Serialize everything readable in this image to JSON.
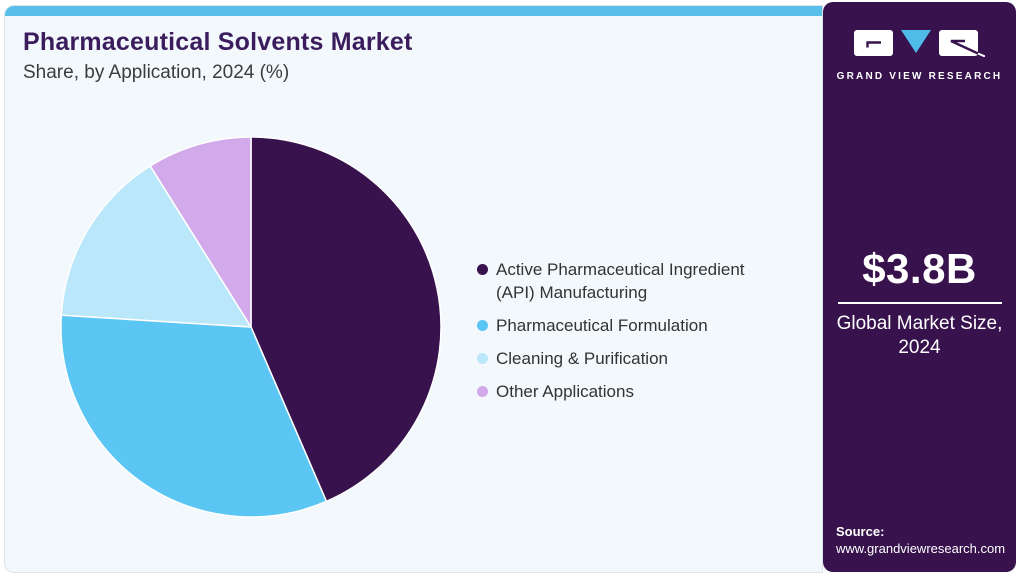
{
  "header": {
    "title": "Pharmaceutical Solvents Market",
    "subtitle": "Share, by Application, 2024 (%)"
  },
  "chart_data": {
    "type": "pie",
    "title": "Pharmaceutical Solvents Market Share, by Application, 2024 (%)",
    "unit": "%",
    "start_angle_deg": 0,
    "direction": "clockwise",
    "legend_position": "right",
    "slices": [
      {
        "label": "Active Pharmaceutical Ingredient (API) Manufacturing",
        "value": 43.5,
        "color": "#37124D"
      },
      {
        "label": "Pharmaceutical Formulation",
        "value": 32.5,
        "color": "#5BC6F3"
      },
      {
        "label": "Cleaning & Purification",
        "value": 15.1,
        "color": "#BBE7FA"
      },
      {
        "label": "Other Applications",
        "value": 8.9,
        "color": "#D2A9EA"
      }
    ]
  },
  "sidebar": {
    "logo_text": "GRAND VIEW RESEARCH",
    "market_size_value": "$3.8B",
    "market_size_label": "Global Market Size,\n2024",
    "source_label": "Source:",
    "source_url": "www.grandviewresearch.com"
  },
  "colors": {
    "accent_bar": "#5BC0E9",
    "card_bg": "#F2F8FC",
    "sidebar_bg": "#37124D",
    "title_text": "#3B1D5E",
    "body_text": "#333333",
    "logo_triangle": "#4FBBE8",
    "slice_stroke": "#FFFFFF"
  }
}
